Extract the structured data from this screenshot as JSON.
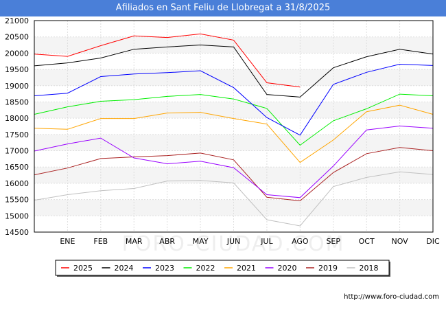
{
  "chart_data": {
    "type": "line",
    "title": "Afiliados en Sant Feliu de Llobregat a 31/8/2025",
    "categories": [
      "",
      "ENE",
      "FEB",
      "MAR",
      "ABR",
      "MAY",
      "JUN",
      "JUL",
      "AGO",
      "SEP",
      "OCT",
      "NOV",
      "DIC"
    ],
    "ylim": [
      14500,
      21000
    ],
    "yticks": [
      14500,
      15000,
      15500,
      16000,
      16500,
      17000,
      17500,
      18000,
      18500,
      19000,
      19500,
      20000,
      20500,
      21000
    ],
    "series": [
      {
        "name": "2025",
        "color": "#ff0000",
        "values": [
          19970,
          19900,
          20230,
          20530,
          20480,
          20590,
          20400,
          19090,
          18960,
          null,
          null,
          null,
          null
        ]
      },
      {
        "name": "2024",
        "color": "#000000",
        "values": [
          19610,
          19700,
          19850,
          20120,
          20190,
          20250,
          20190,
          18730,
          18650,
          19550,
          19890,
          20120,
          19970
        ]
      },
      {
        "name": "2023",
        "color": "#0000ff",
        "values": [
          18690,
          18770,
          19280,
          19360,
          19400,
          19460,
          18940,
          18020,
          17480,
          19040,
          19410,
          19660,
          19620
        ]
      },
      {
        "name": "2022",
        "color": "#00ee00",
        "values": [
          18120,
          18350,
          18520,
          18570,
          18670,
          18730,
          18590,
          18300,
          17170,
          17920,
          18290,
          18740,
          18690
        ]
      },
      {
        "name": "2021",
        "color": "#ffa500",
        "values": [
          17690,
          17660,
          17990,
          17990,
          18160,
          18180,
          17990,
          17820,
          16640,
          17330,
          18200,
          18400,
          18120
        ]
      },
      {
        "name": "2020",
        "color": "#9900ff",
        "values": [
          16990,
          17210,
          17390,
          16780,
          16600,
          16680,
          16480,
          15650,
          15560,
          16530,
          17640,
          17760,
          17690
        ]
      },
      {
        "name": "2019",
        "color": "#aa2222",
        "values": [
          16260,
          16470,
          16760,
          16810,
          16850,
          16930,
          16720,
          15570,
          15460,
          16330,
          16910,
          17100,
          17000
        ]
      },
      {
        "name": "2018",
        "color": "#c0c0c0",
        "values": [
          15480,
          15650,
          15770,
          15840,
          16070,
          16090,
          16010,
          14880,
          14690,
          15900,
          16180,
          16350,
          16270
        ]
      }
    ]
  },
  "watermark": "FORO-CIUDAD.COM",
  "credit": "http://www.foro-ciudad.com"
}
